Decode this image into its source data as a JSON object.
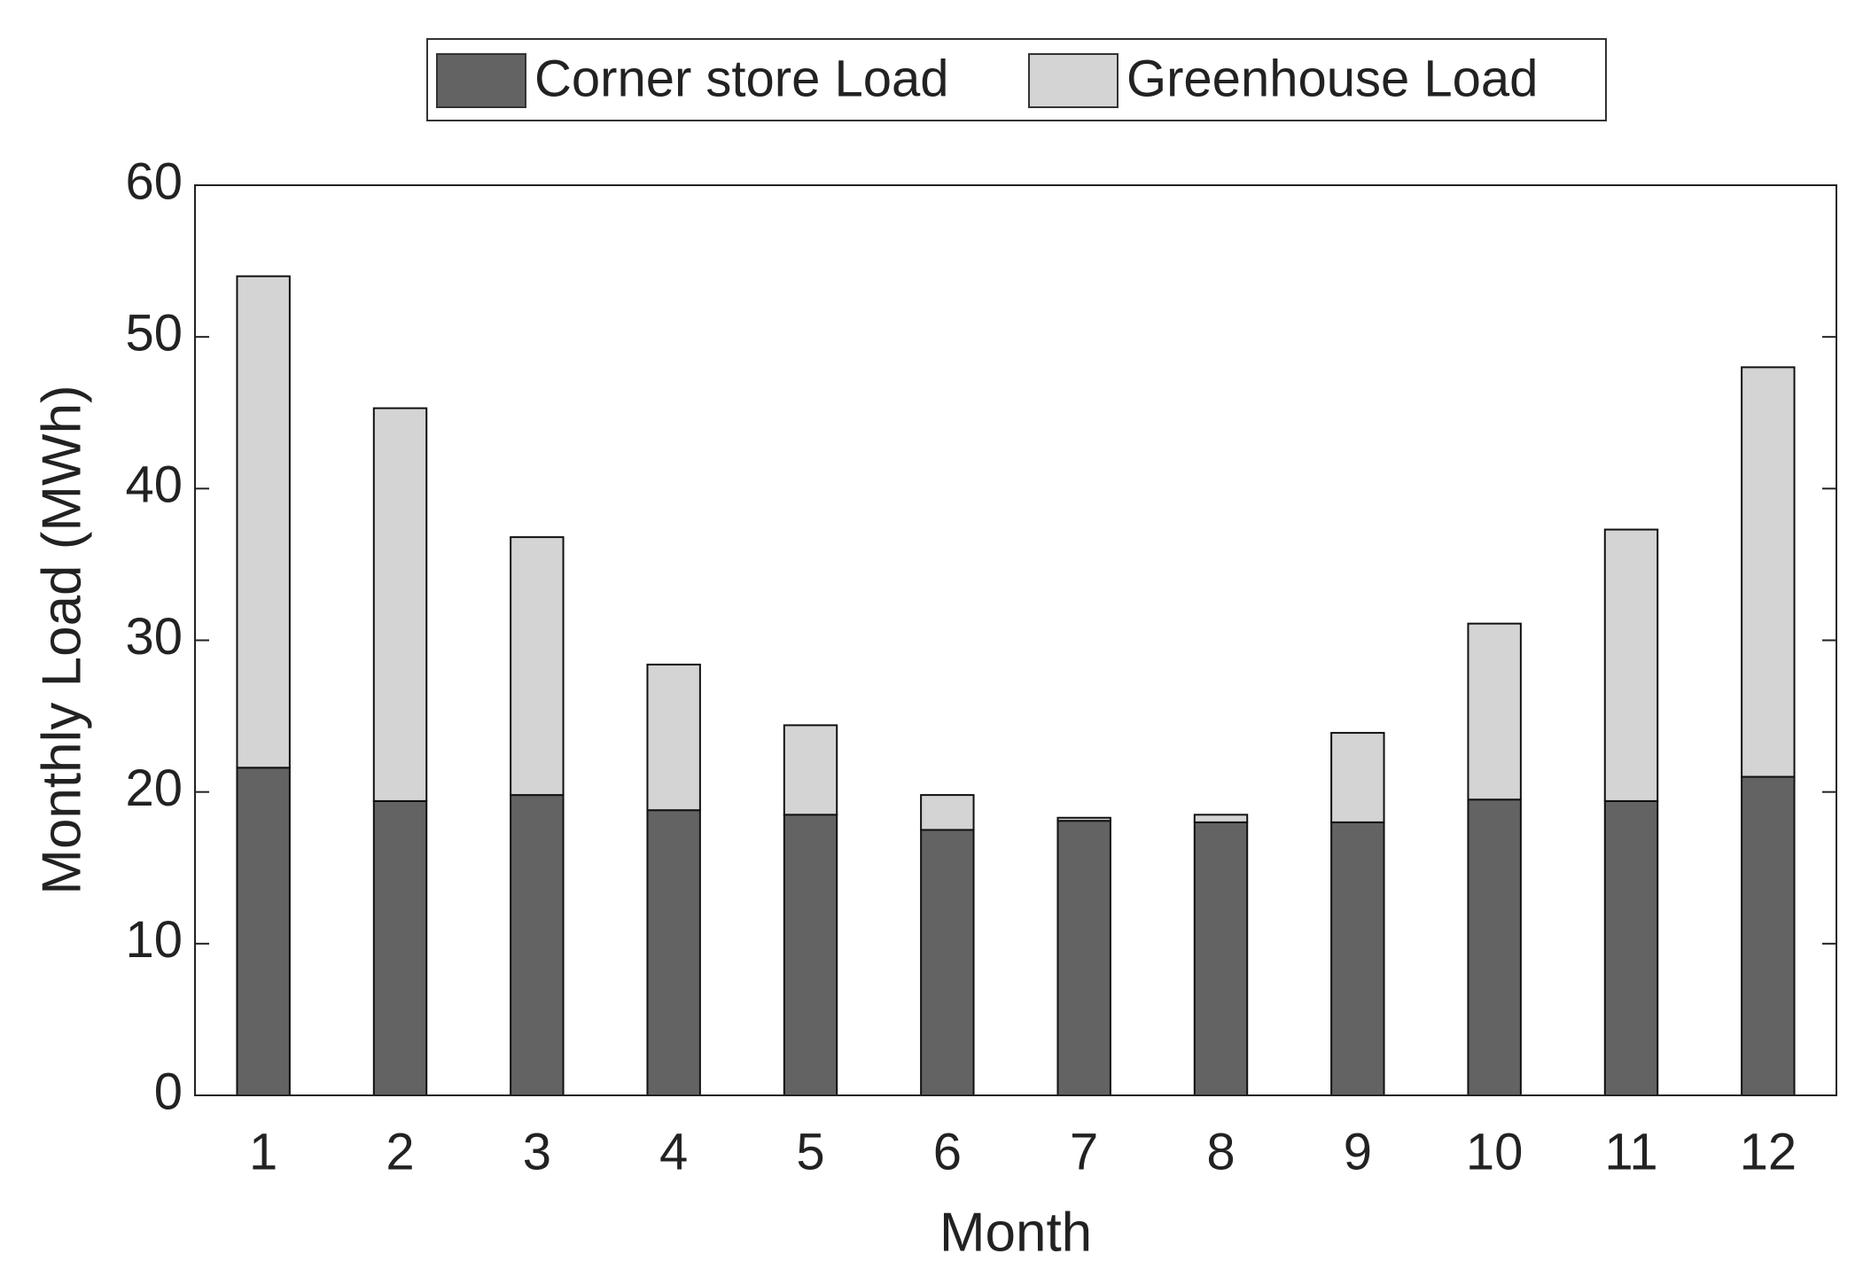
{
  "chart_data": {
    "type": "stacked-bar",
    "x_label": "Month",
    "y_label": "Monthly Load (MWh)",
    "categories": [
      "1",
      "2",
      "3",
      "4",
      "5",
      "6",
      "7",
      "8",
      "9",
      "10",
      "11",
      "12"
    ],
    "series": [
      {
        "name": "Corner store Load",
        "color": "#636363",
        "values": [
          21.6,
          19.4,
          19.8,
          18.8,
          18.5,
          17.5,
          18.1,
          18.0,
          18.0,
          19.5,
          19.4,
          21.0
        ]
      },
      {
        "name": "Greenhouse Load",
        "color": "#d4d4d4",
        "values": [
          32.4,
          25.9,
          17.0,
          9.6,
          5.9,
          2.3,
          0.2,
          0.5,
          5.9,
          11.6,
          17.9,
          27.0
        ]
      }
    ],
    "ylim": [
      0,
      60
    ],
    "yticks": [
      0,
      10,
      20,
      30,
      40,
      50,
      60
    ],
    "legend": "top"
  }
}
